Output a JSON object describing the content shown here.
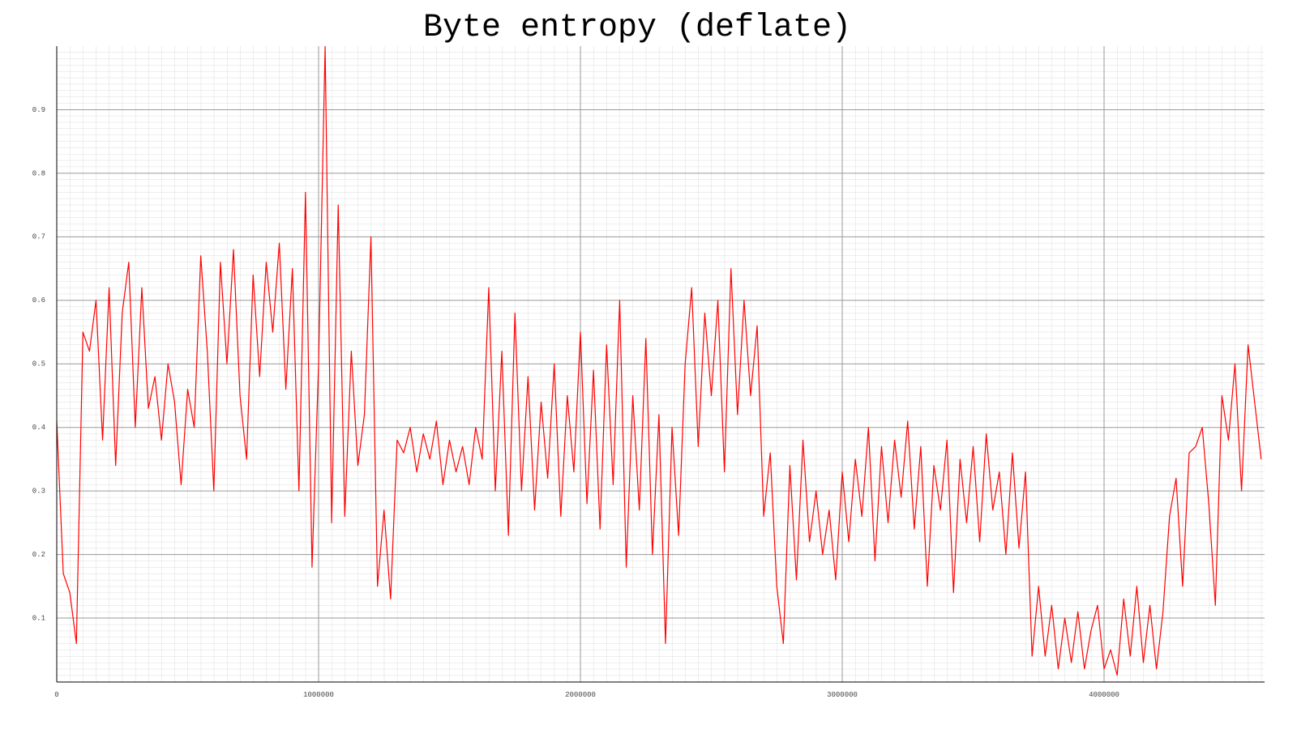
{
  "chart_data": {
    "type": "line",
    "title": "Byte entropy (deflate)",
    "color": "#ff0000",
    "xlim": [
      0,
      4613000
    ],
    "ylim": [
      0,
      1
    ],
    "xticks": [
      0,
      1000000,
      2000000,
      3000000,
      4000000
    ],
    "yticks": [
      0.1,
      0.2,
      0.3,
      0.4,
      0.5,
      0.6,
      0.7,
      0.8,
      0.9
    ],
    "grid": true,
    "x": [
      0,
      25000,
      50000,
      75000,
      100000,
      125000,
      150000,
      175000,
      200000,
      225000,
      250000,
      275000,
      300000,
      325000,
      350000,
      375000,
      400000,
      425000,
      450000,
      475000,
      500000,
      525000,
      550000,
      575000,
      600000,
      625000,
      650000,
      675000,
      700000,
      725000,
      750000,
      775000,
      800000,
      825000,
      850000,
      875000,
      900000,
      925000,
      950000,
      975000,
      1000000,
      1025000,
      1050000,
      1075000,
      1100000,
      1125000,
      1150000,
      1175000,
      1200000,
      1225000,
      1250000,
      1275000,
      1300000,
      1325000,
      1350000,
      1375000,
      1400000,
      1425000,
      1450000,
      1475000,
      1500000,
      1525000,
      1550000,
      1575000,
      1600000,
      1625000,
      1650000,
      1675000,
      1700000,
      1725000,
      1750000,
      1775000,
      1800000,
      1825000,
      1850000,
      1875000,
      1900000,
      1925000,
      1950000,
      1975000,
      2000000,
      2025000,
      2050000,
      2075000,
      2100000,
      2125000,
      2150000,
      2175000,
      2200000,
      2225000,
      2250000,
      2275000,
      2300000,
      2325000,
      2350000,
      2375000,
      2400000,
      2425000,
      2450000,
      2475000,
      2500000,
      2525000,
      2550000,
      2575000,
      2600000,
      2625000,
      2650000,
      2675000,
      2700000,
      2725000,
      2750000,
      2775000,
      2800000,
      2825000,
      2850000,
      2875000,
      2900000,
      2925000,
      2950000,
      2975000,
      3000000,
      3025000,
      3050000,
      3075000,
      3100000,
      3125000,
      3150000,
      3175000,
      3200000,
      3225000,
      3250000,
      3275000,
      3300000,
      3325000,
      3350000,
      3375000,
      3400000,
      3425000,
      3450000,
      3475000,
      3500000,
      3525000,
      3550000,
      3575000,
      3600000,
      3625000,
      3650000,
      3675000,
      3700000,
      3725000,
      3750000,
      3775000,
      3800000,
      3825000,
      3850000,
      3875000,
      3900000,
      3925000,
      3950000,
      3975000,
      4000000,
      4025000,
      4050000,
      4075000,
      4100000,
      4125000,
      4150000,
      4175000,
      4200000,
      4225000,
      4250000,
      4275000,
      4300000,
      4325000,
      4350000,
      4375000,
      4400000,
      4425000,
      4450000,
      4475000,
      4500000,
      4525000,
      4550000,
      4575000,
      4600000
    ],
    "values": [
      0.41,
      0.17,
      0.14,
      0.06,
      0.55,
      0.52,
      0.6,
      0.38,
      0.62,
      0.34,
      0.58,
      0.66,
      0.4,
      0.62,
      0.43,
      0.48,
      0.38,
      0.5,
      0.44,
      0.31,
      0.46,
      0.4,
      0.67,
      0.52,
      0.3,
      0.66,
      0.5,
      0.68,
      0.45,
      0.35,
      0.64,
      0.48,
      0.66,
      0.55,
      0.69,
      0.46,
      0.65,
      0.3,
      0.77,
      0.18,
      0.5,
      1.0,
      0.25,
      0.75,
      0.26,
      0.52,
      0.34,
      0.42,
      0.7,
      0.15,
      0.27,
      0.13,
      0.38,
      0.36,
      0.4,
      0.33,
      0.39,
      0.35,
      0.41,
      0.31,
      0.38,
      0.33,
      0.37,
      0.31,
      0.4,
      0.35,
      0.62,
      0.3,
      0.52,
      0.23,
      0.58,
      0.3,
      0.48,
      0.27,
      0.44,
      0.32,
      0.5,
      0.26,
      0.45,
      0.33,
      0.55,
      0.28,
      0.49,
      0.24,
      0.53,
      0.31,
      0.6,
      0.18,
      0.45,
      0.27,
      0.54,
      0.2,
      0.42,
      0.06,
      0.4,
      0.23,
      0.5,
      0.62,
      0.37,
      0.58,
      0.45,
      0.6,
      0.33,
      0.65,
      0.42,
      0.6,
      0.45,
      0.56,
      0.26,
      0.36,
      0.15,
      0.06,
      0.34,
      0.16,
      0.38,
      0.22,
      0.3,
      0.2,
      0.27,
      0.16,
      0.33,
      0.22,
      0.35,
      0.26,
      0.4,
      0.19,
      0.37,
      0.25,
      0.38,
      0.29,
      0.41,
      0.24,
      0.37,
      0.15,
      0.34,
      0.27,
      0.38,
      0.14,
      0.35,
      0.25,
      0.37,
      0.22,
      0.39,
      0.27,
      0.33,
      0.2,
      0.36,
      0.21,
      0.33,
      0.04,
      0.15,
      0.04,
      0.12,
      0.02,
      0.1,
      0.03,
      0.11,
      0.02,
      0.08,
      0.12,
      0.02,
      0.05,
      0.01,
      0.13,
      0.04,
      0.15,
      0.03,
      0.12,
      0.02,
      0.11,
      0.26,
      0.32,
      0.15,
      0.36,
      0.37,
      0.4,
      0.28,
      0.12,
      0.45,
      0.38,
      0.5,
      0.3,
      0.53,
      0.44,
      0.35
    ]
  }
}
